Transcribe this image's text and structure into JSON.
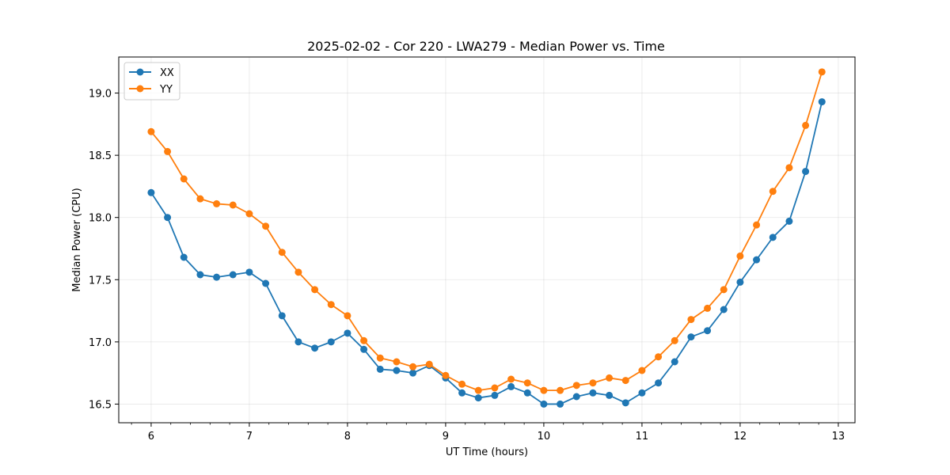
{
  "chart_data": {
    "type": "line",
    "title": "2025-02-02 - Cor 220 - LWA279 - Median Power vs. Time",
    "xlabel": "UT Time (hours)",
    "ylabel": "Median Power (CPU)",
    "xlim": [
      5.67,
      13.17
    ],
    "ylim": [
      16.35,
      19.29
    ],
    "xticks": [
      6,
      7,
      8,
      9,
      10,
      11,
      12,
      13
    ],
    "yticks": [
      16.5,
      17.0,
      17.5,
      18.0,
      18.5,
      19.0
    ],
    "xtick_labels": [
      "6",
      "7",
      "8",
      "9",
      "10",
      "11",
      "12",
      "13"
    ],
    "ytick_labels": [
      "16.5",
      "17.0",
      "17.5",
      "18.0",
      "18.5",
      "19.0"
    ],
    "minor_xtick_step": 0.2,
    "grid": true,
    "legend_position": "upper-left",
    "x": [
      6.0,
      6.1667,
      6.3333,
      6.5,
      6.6667,
      6.8333,
      7.0,
      7.1667,
      7.3333,
      7.5,
      7.6667,
      7.8333,
      8.0,
      8.1667,
      8.3333,
      8.5,
      8.6667,
      8.8333,
      9.0,
      9.1667,
      9.3333,
      9.5,
      9.6667,
      9.8333,
      10.0,
      10.1667,
      10.3333,
      10.5,
      10.6667,
      10.8333,
      11.0,
      11.1667,
      11.3333,
      11.5,
      11.6667,
      11.8333,
      12.0,
      12.1667,
      12.3333,
      12.5,
      12.6667,
      12.8333
    ],
    "series": [
      {
        "name": "XX",
        "color": "#1f77b4",
        "values": [
          18.2,
          18.0,
          17.68,
          17.54,
          17.52,
          17.54,
          17.56,
          17.47,
          17.21,
          17.0,
          16.95,
          17.0,
          17.07,
          16.94,
          16.78,
          16.77,
          16.75,
          16.81,
          16.71,
          16.59,
          16.55,
          16.57,
          16.64,
          16.59,
          16.5,
          16.5,
          16.56,
          16.59,
          16.57,
          16.51,
          16.59,
          16.67,
          16.84,
          17.04,
          17.09,
          17.26,
          17.48,
          17.66,
          17.84,
          17.97,
          18.37,
          18.93
        ]
      },
      {
        "name": "YY",
        "color": "#ff7f0e",
        "values": [
          18.69,
          18.53,
          18.31,
          18.15,
          18.11,
          18.1,
          18.03,
          17.93,
          17.72,
          17.56,
          17.42,
          17.3,
          17.21,
          17.01,
          16.87,
          16.84,
          16.8,
          16.82,
          16.73,
          16.66,
          16.61,
          16.63,
          16.7,
          16.67,
          16.61,
          16.61,
          16.65,
          16.67,
          16.71,
          16.69,
          16.77,
          16.88,
          17.01,
          17.18,
          17.27,
          17.42,
          17.69,
          17.94,
          18.21,
          18.4,
          18.74,
          19.17
        ]
      }
    ]
  }
}
